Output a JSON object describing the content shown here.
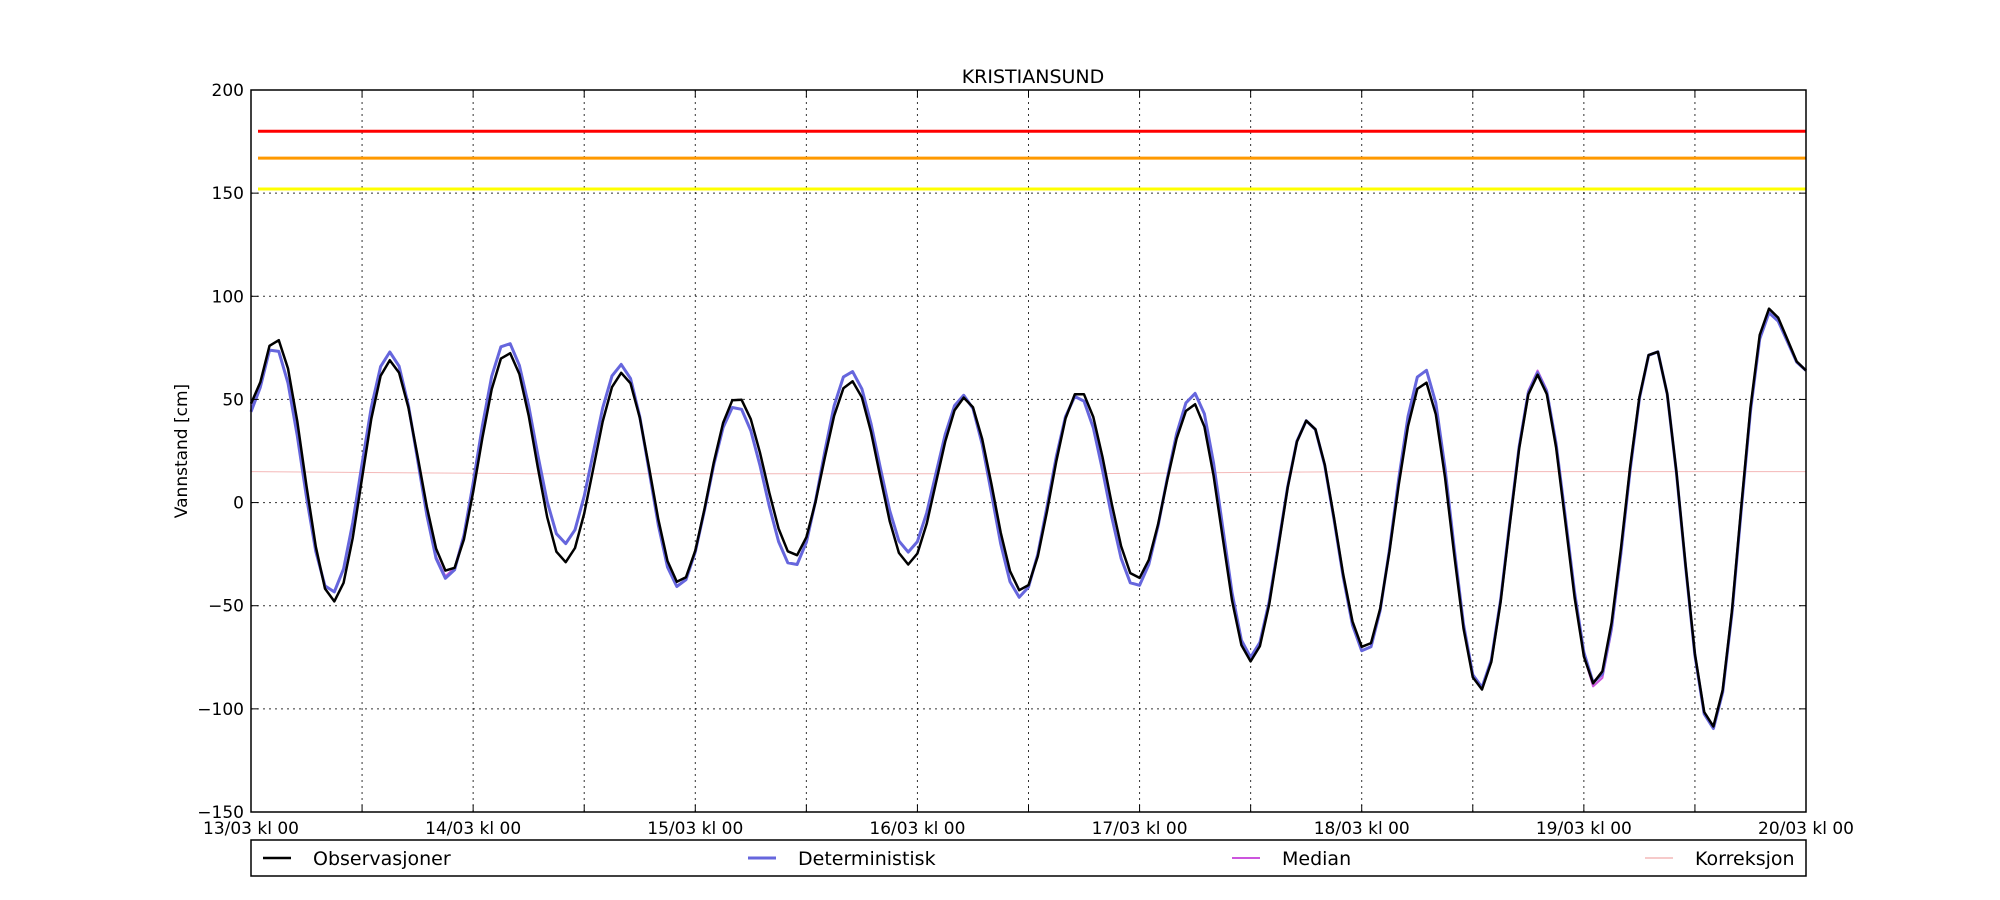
{
  "chart_data": {
    "type": "line",
    "title": "KRISTIANSUND",
    "ylabel": "Vannstand [cm]",
    "xlabel": "",
    "ylim": [
      -150,
      200
    ],
    "yticks": [
      -150,
      -100,
      -50,
      0,
      50,
      100,
      150,
      200
    ],
    "xlim_hours": [
      0,
      168
    ],
    "xtick_labels": [
      "13/03 kl 00",
      "14/03 kl 00",
      "15/03 kl 00",
      "16/03 kl 00",
      "17/03 kl 00",
      "18/03 kl 00",
      "19/03 kl 00",
      "20/03 kl 00"
    ],
    "x_start": "13/03 kl 00",
    "x_step_hours": 1,
    "grid": true,
    "legend_position": "bottom",
    "thresholds": [
      {
        "value": 180,
        "color": "#ff0000"
      },
      {
        "value": 167,
        "color": "#ff9900"
      },
      {
        "value": 152,
        "color": "#ffff00"
      }
    ],
    "extrema": {
      "observasjoner": [
        [
          0,
          48
        ],
        [
          2.6,
          80
        ],
        [
          8.9,
          -48
        ],
        [
          15.0,
          69
        ],
        [
          21.4,
          -34
        ],
        [
          27.7,
          73
        ],
        [
          33.9,
          -29
        ],
        [
          40.1,
          63
        ],
        [
          46.3,
          -39
        ],
        [
          52.5,
          51
        ],
        [
          58.7,
          -26
        ],
        [
          64.8,
          59
        ],
        [
          71.0,
          -30
        ],
        [
          77.1,
          51
        ],
        [
          83.3,
          -43
        ],
        [
          89.5,
          54
        ],
        [
          95.7,
          -37
        ],
        [
          101.8,
          48
        ],
        [
          108.0,
          -77
        ],
        [
          114.2,
          40
        ],
        [
          120.4,
          -71
        ],
        [
          126.7,
          59
        ],
        [
          132.8,
          -91
        ],
        [
          139.0,
          62
        ],
        [
          145.2,
          -88
        ],
        [
          151.6,
          75
        ],
        [
          157.8,
          -109
        ],
        [
          164.0,
          94
        ],
        [
          168,
          64
        ]
      ],
      "deterministisk": [
        [
          0,
          44
        ],
        [
          2.4,
          76
        ],
        [
          8.7,
          -44
        ],
        [
          15.0,
          73
        ],
        [
          21.2,
          -37
        ],
        [
          27.6,
          78
        ],
        [
          33.9,
          -20
        ],
        [
          40.0,
          67
        ],
        [
          46.2,
          -41
        ],
        [
          52.4,
          47
        ],
        [
          58.6,
          -31
        ],
        [
          64.7,
          64
        ],
        [
          71.0,
          -24
        ],
        [
          77.0,
          52
        ],
        [
          83.1,
          -46
        ],
        [
          89.3,
          52
        ],
        [
          95.6,
          -41
        ],
        [
          101.9,
          53
        ],
        [
          108.0,
          -75
        ],
        [
          114.2,
          40
        ],
        [
          120.4,
          -73
        ],
        [
          126.7,
          65
        ],
        [
          132.8,
          -90
        ],
        [
          139.0,
          63
        ],
        [
          145.3,
          -88
        ],
        [
          151.6,
          75
        ],
        [
          157.8,
          -110
        ],
        [
          164.0,
          92
        ],
        [
          168,
          64
        ]
      ],
      "median": [
        [
          0,
          45
        ],
        [
          2.4,
          76
        ],
        [
          8.7,
          -44
        ],
        [
          15.0,
          73
        ],
        [
          21.2,
          -36
        ],
        [
          27.6,
          78
        ],
        [
          33.9,
          -20
        ],
        [
          40.0,
          67
        ],
        [
          46.2,
          -41
        ],
        [
          52.4,
          47
        ],
        [
          58.6,
          -31
        ],
        [
          64.7,
          64
        ],
        [
          71.0,
          -24
        ],
        [
          77.0,
          52
        ],
        [
          83.1,
          -46
        ],
        [
          89.3,
          52
        ],
        [
          95.6,
          -41
        ],
        [
          101.9,
          53
        ],
        [
          108.0,
          -75
        ],
        [
          114.2,
          40
        ],
        [
          120.4,
          -73
        ],
        [
          126.7,
          65
        ],
        [
          132.8,
          -90
        ],
        [
          139.0,
          64
        ],
        [
          145.3,
          -90
        ],
        [
          151.6,
          75
        ],
        [
          157.8,
          -110
        ],
        [
          164.0,
          92
        ],
        [
          168,
          64
        ]
      ],
      "korreksjon": [
        [
          0,
          15
        ],
        [
          30,
          14
        ],
        [
          60,
          14
        ],
        [
          90,
          14
        ],
        [
          120,
          15
        ],
        [
          168,
          15
        ]
      ]
    },
    "series": [
      {
        "name": "Observasjoner",
        "color": "#000000",
        "key": "observasjoner",
        "width": 2.5
      },
      {
        "name": "Deterministisk",
        "color": "#6666dd",
        "key": "deterministisk",
        "width": 3
      },
      {
        "name": "Median",
        "color": "#cc55dd",
        "key": "median",
        "width": 2
      },
      {
        "name": "Korreksjon",
        "color": "#f4b8b8",
        "key": "korreksjon",
        "width": 1
      }
    ]
  }
}
